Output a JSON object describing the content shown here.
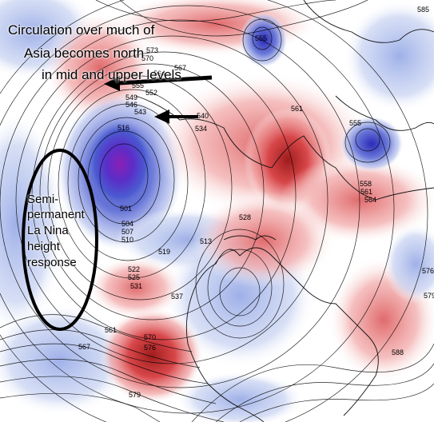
{
  "annotations": {
    "circulation_line1": "Circulation over much of",
    "circulation_line2": "Asia becomes north",
    "circulation_line3": "in mid and upper levels",
    "lanina_line1": "Semi-",
    "lanina_line2": "permanent",
    "lanina_line3": "La Nina",
    "lanina_line4": "height",
    "lanina_line5": "response"
  },
  "contour_labels": {
    "l585": "585",
    "l555": "555",
    "l567": "567",
    "l570": "570",
    "l573": "573",
    "l564": "564",
    "l558": "558",
    "l555b": "555",
    "l552": "552",
    "l549": "549",
    "l546": "546",
    "l543": "543",
    "l540": "540",
    "l534": "534",
    "l516": "516",
    "l501": "501",
    "l504": "504",
    "l507": "507",
    "l510": "510",
    "l513": "513",
    "l519": "519",
    "l522": "522",
    "l525": "525",
    "l528": "528",
    "l531": "531",
    "l537": "537",
    "l561": "561",
    "l576": "576",
    "l579": "579",
    "l588": "588",
    "l561b": "561",
    "l555c": "555",
    "l558b": "558",
    "l561c": "561",
    "l564b": "564",
    "l567b": "567",
    "l570b": "570",
    "l576b": "576",
    "l579b": "579"
  },
  "colors": {
    "ridge_anomaly": "#c0282c",
    "trough_anomaly": "#3f3fc8",
    "trough_core": "#8a1fb5",
    "annotation_circle": "#000000",
    "arrows": "#000000"
  },
  "icons": {
    "arrow_upper": "left-arrow-icon",
    "arrow_lower": "left-arrow-icon",
    "ellipse": "circle-outline-icon"
  }
}
